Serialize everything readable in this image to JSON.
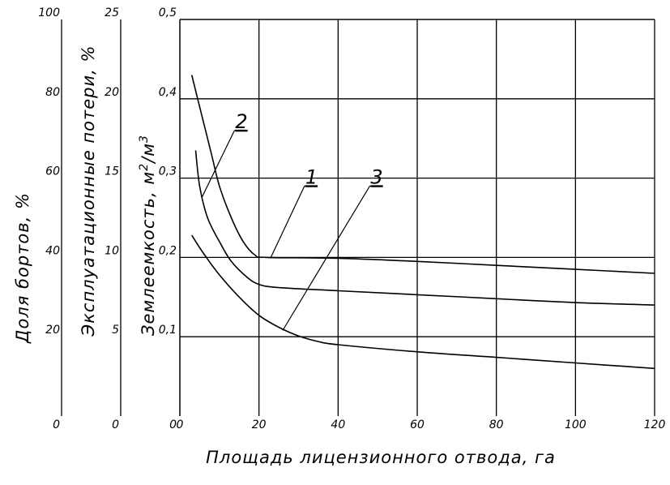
{
  "chart_data": {
    "type": "line",
    "xlabel": "Площадь лицензионного отвода, га",
    "xlim": [
      0,
      120
    ],
    "x_ticks": [
      "0",
      "20",
      "40",
      "60",
      "80",
      "100",
      "120"
    ],
    "grid": true,
    "y_axes": [
      {
        "id": "dolya",
        "label": "Доля бортов, %",
        "range": [
          0,
          100
        ],
        "ticks": [
          "0",
          "20",
          "40",
          "60",
          "80",
          "100"
        ]
      },
      {
        "id": "poteri",
        "label": "Эксплуатационные потери, %",
        "range": [
          0,
          25
        ],
        "ticks": [
          "0",
          "5",
          "10",
          "15",
          "20",
          "25"
        ]
      },
      {
        "id": "zemlemkost",
        "label": "Землеемкость,  м",
        "label_sup1": "2",
        "label_mid": "/м",
        "label_sup2": "3",
        "range": [
          0,
          0.5
        ],
        "ticks": [
          "0,1",
          "0,2",
          "0,3",
          "0,4",
          "0,5"
        ]
      }
    ],
    "series": [
      {
        "name": "1",
        "points": [
          [
            3,
            0.43
          ],
          [
            5,
            0.39
          ],
          [
            8,
            0.33
          ],
          [
            10,
            0.29
          ],
          [
            13,
            0.25
          ],
          [
            16,
            0.22
          ],
          [
            19,
            0.203
          ],
          [
            22,
            0.2
          ],
          [
            40,
            0.199
          ],
          [
            60,
            0.195
          ],
          [
            80,
            0.19
          ],
          [
            100,
            0.185
          ],
          [
            120,
            0.18
          ]
        ]
      },
      {
        "name": "2",
        "points": [
          [
            4,
            0.335
          ],
          [
            5,
            0.29
          ],
          [
            7,
            0.25
          ],
          [
            10,
            0.22
          ],
          [
            13,
            0.195
          ],
          [
            17,
            0.175
          ],
          [
            20,
            0.166
          ],
          [
            25,
            0.162
          ],
          [
            40,
            0.158
          ],
          [
            60,
            0.153
          ],
          [
            80,
            0.148
          ],
          [
            100,
            0.143
          ],
          [
            120,
            0.14
          ]
        ]
      },
      {
        "name": "3",
        "points": [
          [
            3,
            0.228
          ],
          [
            6,
            0.205
          ],
          [
            10,
            0.178
          ],
          [
            15,
            0.15
          ],
          [
            20,
            0.127
          ],
          [
            25,
            0.112
          ],
          [
            30,
            0.101
          ],
          [
            35,
            0.094
          ],
          [
            40,
            0.09
          ],
          [
            60,
            0.081
          ],
          [
            80,
            0.074
          ],
          [
            100,
            0.067
          ],
          [
            120,
            0.06
          ]
        ]
      }
    ],
    "leaders": [
      {
        "series": "1",
        "label": "1",
        "from": [
          23,
          0.2
        ],
        "to": [
          31.5,
          0.29
        ]
      },
      {
        "series": "2",
        "label": "2",
        "from": [
          5.5,
          0.275
        ],
        "to": [
          13.8,
          0.36
        ]
      },
      {
        "series": "3",
        "label": "3",
        "from": [
          26,
          0.108
        ],
        "to": [
          48,
          0.29
        ]
      }
    ]
  }
}
